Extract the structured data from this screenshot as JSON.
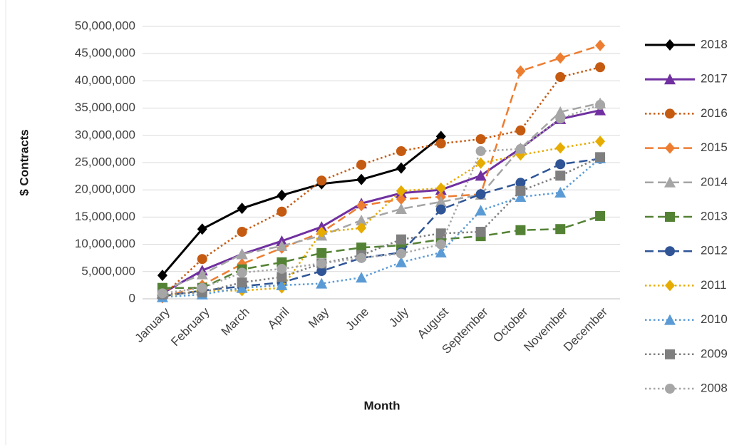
{
  "chart_data": {
    "type": "line",
    "x_label": "Month",
    "y_label": "$ Contracts",
    "categories": [
      "January",
      "February",
      "March",
      "April",
      "May",
      "June",
      "July",
      "August",
      "September",
      "October",
      "November",
      "December"
    ],
    "ylim": [
      0,
      50000000
    ],
    "yticks": [
      {
        "value": 0,
        "label": "0"
      },
      {
        "value": 5000000,
        "label": "5,000,000"
      },
      {
        "value": 10000000,
        "label": "10,000,000"
      },
      {
        "value": 15000000,
        "label": "15,000,000"
      },
      {
        "value": 20000000,
        "label": "20,000,000"
      },
      {
        "value": 25000000,
        "label": "25,000,000"
      },
      {
        "value": 30000000,
        "label": "30,000,000"
      },
      {
        "value": 35000000,
        "label": "35,000,000"
      },
      {
        "value": 40000000,
        "label": "40,000,000"
      },
      {
        "value": 45000000,
        "label": "45,000,000"
      },
      {
        "value": 50000000,
        "label": "50,000,000"
      }
    ],
    "grid": true,
    "legend": "right",
    "series": [
      {
        "name": "2018",
        "color": "#000000",
        "dash": "solid",
        "marker": "diamond",
        "values": [
          4300000,
          12800000,
          16600000,
          19000000,
          21100000,
          21900000,
          24000000,
          29800000,
          null,
          null,
          null,
          null
        ]
      },
      {
        "name": "2017",
        "color": "#7030a0",
        "dash": "solid",
        "marker": "triangle",
        "values": [
          1000000,
          5200000,
          8200000,
          10600000,
          13200000,
          17500000,
          19400000,
          20000000,
          22600000,
          27600000,
          33000000,
          34600000
        ]
      },
      {
        "name": "2016",
        "color": "#c55a11",
        "dash": "dotted",
        "marker": "circle",
        "values": [
          500000,
          7300000,
          12300000,
          16000000,
          21700000,
          24600000,
          27100000,
          28500000,
          29300000,
          30900000,
          40700000,
          42500000
        ]
      },
      {
        "name": "2015",
        "color": "#ed7d31",
        "dash": "dashed",
        "marker": "diamond",
        "values": [
          200000,
          2500000,
          6400000,
          9300000,
          12200000,
          17100000,
          18300000,
          18700000,
          19200000,
          41800000,
          44200000,
          46500000
        ]
      },
      {
        "name": "2014",
        "color": "#a5a5a5",
        "dash": "dashed",
        "marker": "triangle",
        "values": [
          1500000,
          4500000,
          8200000,
          9700000,
          11600000,
          14400000,
          16500000,
          17800000,
          19100000,
          27600000,
          34300000,
          35900000
        ]
      },
      {
        "name": "2013",
        "color": "#548235",
        "dash": "dashed",
        "marker": "square",
        "values": [
          2000000,
          2000000,
          5400000,
          6700000,
          8400000,
          9400000,
          9800000,
          10900000,
          11500000,
          12600000,
          12800000,
          15200000
        ]
      },
      {
        "name": "2012",
        "color": "#2f5597",
        "dash": "dashed",
        "marker": "circle",
        "values": [
          500000,
          1500000,
          2300000,
          3000000,
          5100000,
          7500000,
          8500000,
          16400000,
          19200000,
          21300000,
          24700000,
          25700000
        ]
      },
      {
        "name": "2011",
        "color": "#e6ac00",
        "dash": "dotted",
        "marker": "diamond",
        "values": [
          500000,
          1500000,
          1500000,
          2000000,
          12200000,
          13000000,
          19800000,
          20300000,
          24900000,
          26400000,
          27700000,
          28900000
        ]
      },
      {
        "name": "2010",
        "color": "#5b9bd5",
        "dash": "dotted",
        "marker": "triangle",
        "values": [
          300000,
          800000,
          2000000,
          2500000,
          2800000,
          3900000,
          6700000,
          8500000,
          16200000,
          18700000,
          19500000,
          25800000
        ]
      },
      {
        "name": "2009",
        "color": "#7f7f7f",
        "dash": "dotted",
        "marker": "square",
        "values": [
          800000,
          1200000,
          3000000,
          4000000,
          6500000,
          8000000,
          10900000,
          12000000,
          12300000,
          19800000,
          22600000,
          26000000
        ]
      },
      {
        "name": "2008",
        "color": "#a6a6a6",
        "dash": "dotted",
        "marker": "circle",
        "values": [
          1000000,
          2000000,
          4800000,
          5500000,
          6500000,
          7500000,
          8300000,
          10000000,
          27100000,
          27500000,
          33100000,
          35600000
        ]
      }
    ]
  }
}
